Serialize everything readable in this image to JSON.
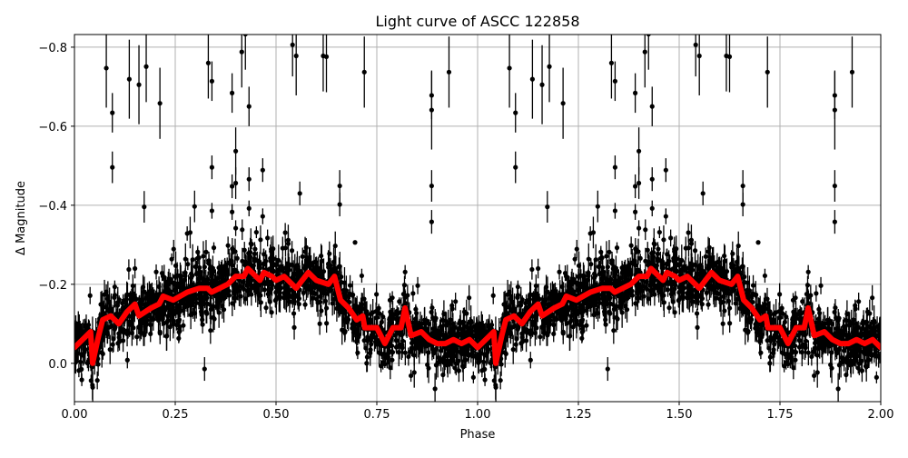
{
  "chart_data": {
    "type": "scatter",
    "title": "Light curve of ASCC 122858",
    "xlabel": "Phase",
    "ylabel": "Δ Magnitude",
    "xlim": [
      0,
      2
    ],
    "ylim": [
      0.097,
      -0.832
    ],
    "y_inverted": true,
    "grid": true,
    "x_ticks": [
      "0.00",
      "0.25",
      "0.50",
      "0.75",
      "1.00",
      "1.25",
      "1.50",
      "1.75",
      "2.00"
    ],
    "y_ticks": [
      "−0.8",
      "−0.6",
      "−0.4",
      "−0.2",
      "0.0"
    ],
    "x_tick_values": [
      0,
      0.25,
      0.5,
      0.75,
      1,
      1.25,
      1.5,
      1.75,
      2
    ],
    "y_tick_values": [
      -0.8,
      -0.6,
      -0.4,
      -0.2,
      0.0
    ],
    "colors": {
      "points": "#000000",
      "trend": "#ff0000",
      "grid": "#b0b0b0"
    },
    "phase_repeat": 1,
    "trend_line": {
      "phase": [
        0.0,
        0.02,
        0.04,
        0.045,
        0.06,
        0.07,
        0.09,
        0.11,
        0.13,
        0.15,
        0.16,
        0.19,
        0.21,
        0.22,
        0.245,
        0.28,
        0.31,
        0.33,
        0.34,
        0.36,
        0.38,
        0.4,
        0.42,
        0.43,
        0.45,
        0.46,
        0.47,
        0.49,
        0.5,
        0.52,
        0.55,
        0.58,
        0.6,
        0.63,
        0.645,
        0.66,
        0.68,
        0.7,
        0.715,
        0.72,
        0.75,
        0.77,
        0.79,
        0.81,
        0.82,
        0.835,
        0.86,
        0.88,
        0.9,
        0.92,
        0.94,
        0.96,
        0.98,
        1.0
      ],
      "magnitude": [
        -0.04,
        -0.06,
        -0.08,
        0.0,
        -0.07,
        -0.11,
        -0.12,
        -0.1,
        -0.13,
        -0.15,
        -0.12,
        -0.14,
        -0.15,
        -0.17,
        -0.16,
        -0.18,
        -0.19,
        -0.19,
        -0.18,
        -0.19,
        -0.2,
        -0.22,
        -0.22,
        -0.24,
        -0.22,
        -0.21,
        -0.23,
        -0.22,
        -0.21,
        -0.22,
        -0.19,
        -0.23,
        -0.21,
        -0.2,
        -0.22,
        -0.16,
        -0.14,
        -0.11,
        -0.12,
        -0.09,
        -0.09,
        -0.05,
        -0.09,
        -0.09,
        -0.14,
        -0.07,
        -0.08,
        -0.06,
        -0.05,
        -0.05,
        -0.06,
        -0.05,
        -0.06,
        -0.04
      ]
    },
    "outliers": [
      [
        0.079,
        -0.747,
        0.1
      ],
      [
        0.094,
        -0.634,
        0.05
      ],
      [
        0.094,
        -0.496,
        0.04
      ],
      [
        0.136,
        -0.719,
        0.1
      ],
      [
        0.16,
        -0.705,
        0.1
      ],
      [
        0.178,
        -0.751,
        0.09
      ],
      [
        0.212,
        -0.658,
        0.09
      ],
      [
        0.173,
        -0.396,
        0.04
      ],
      [
        0.332,
        -0.76,
        0.09
      ],
      [
        0.341,
        -0.714,
        0.05
      ],
      [
        0.341,
        -0.496,
        0.03
      ],
      [
        0.341,
        -0.386,
        0.02
      ],
      [
        0.298,
        -0.397,
        0.04
      ],
      [
        0.287,
        -0.331,
        0.04
      ],
      [
        0.391,
        -0.684,
        0.05
      ],
      [
        0.391,
        -0.448,
        0.03
      ],
      [
        0.4,
        -0.456,
        0.04
      ],
      [
        0.4,
        -0.537,
        0.06
      ],
      [
        0.391,
        -0.383,
        0.02
      ],
      [
        0.4,
        -0.342,
        0.02
      ],
      [
        0.415,
        -0.788,
        0.09
      ],
      [
        0.424,
        -0.833,
        0.09
      ],
      [
        0.433,
        -0.65,
        0.05
      ],
      [
        0.433,
        -0.466,
        0.03
      ],
      [
        0.433,
        -0.392,
        0.02
      ],
      [
        0.467,
        -0.489,
        0.03
      ],
      [
        0.467,
        -0.372,
        0.02
      ],
      [
        0.541,
        -0.806,
        0.08
      ],
      [
        0.55,
        -0.778,
        0.1
      ],
      [
        0.559,
        -0.43,
        0.03
      ],
      [
        0.617,
        -0.778,
        0.09
      ],
      [
        0.625,
        -0.776,
        0.09
      ],
      [
        0.658,
        -0.449,
        0.04
      ],
      [
        0.658,
        -0.402,
        0.03
      ],
      [
        0.696,
        -0.306,
        0.0
      ],
      [
        0.719,
        -0.737,
        0.09
      ],
      [
        0.886,
        -0.678,
        0.06
      ],
      [
        0.886,
        -0.641,
        0.1
      ],
      [
        0.886,
        -0.449,
        0.04
      ],
      [
        0.886,
        -0.358,
        0.03
      ],
      [
        0.929,
        -0.737,
        0.09
      ]
    ]
  }
}
